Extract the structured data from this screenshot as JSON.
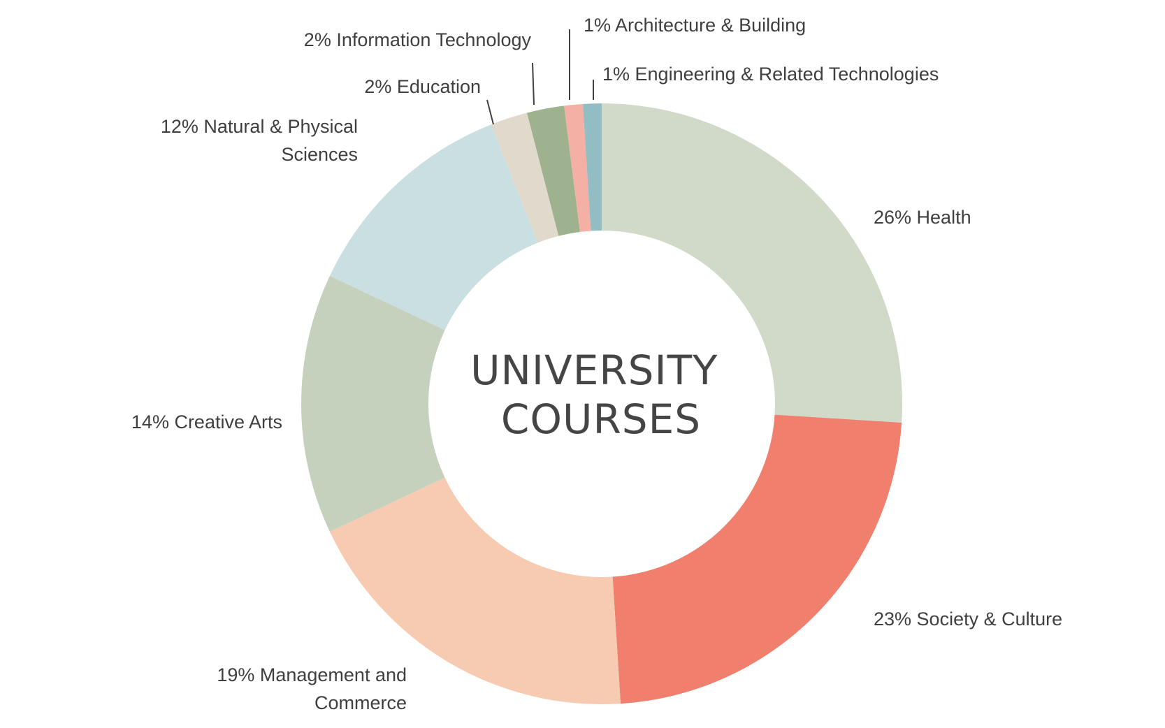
{
  "chart_data": {
    "type": "pie",
    "variant": "donut",
    "title_lines": [
      "UNIVERSITY",
      "COURSES"
    ],
    "legend": "none",
    "slices": [
      {
        "label": "Health",
        "value": 26,
        "label_lines": [
          "26% Health"
        ],
        "color": "#d1dac8"
      },
      {
        "label": "Society & Culture",
        "value": 23,
        "label_lines": [
          "23% Society & Culture"
        ],
        "color": "#f17f6d"
      },
      {
        "label": "Management and Commerce",
        "value": 19,
        "label_lines": [
          "19% Management and",
          "Commerce"
        ],
        "color": "#f7cbb1"
      },
      {
        "label": "Creative Arts",
        "value": 14,
        "label_lines": [
          "14% Creative Arts"
        ],
        "color": "#c5d1bc"
      },
      {
        "label": "Natural & Physical Sciences",
        "value": 12,
        "label_lines": [
          "12% Natural & Physical",
          "Sciences"
        ],
        "color": "#c9dfe1"
      },
      {
        "label": "Education",
        "value": 2,
        "label_lines": [
          "2% Education"
        ],
        "color": "#e0d9cc"
      },
      {
        "label": "Information Technology",
        "value": 2,
        "label_lines": [
          "2% Information Technology"
        ],
        "color": "#9eb28f"
      },
      {
        "label": "Architecture & Building",
        "value": 1,
        "label_lines": [
          "1% Architecture & Building"
        ],
        "color": "#f4b0a4"
      },
      {
        "label": "Engineering & Related Technologies",
        "value": 1,
        "label_lines": [
          "1% Engineering & Related Technologies"
        ],
        "color": "#92bdc3"
      }
    ]
  }
}
